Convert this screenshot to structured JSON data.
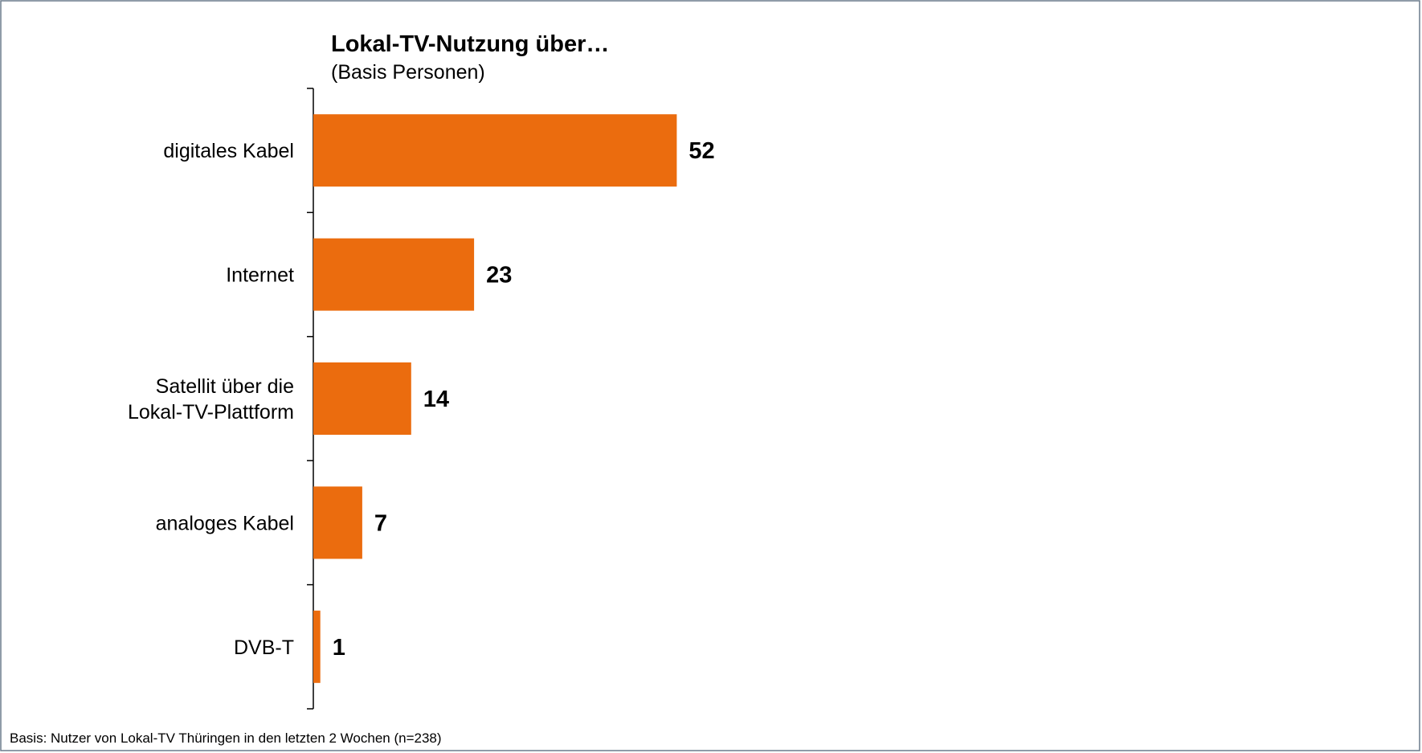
{
  "chart_data": {
    "type": "bar",
    "orientation": "horizontal",
    "title": "Lokal-TV-Nutzung über…",
    "subtitle": "(Basis Personen)",
    "categories": [
      [
        "digitales Kabel"
      ],
      [
        "Internet"
      ],
      [
        "Satellit über die",
        "Lokal-TV-Plattform"
      ],
      [
        "analoges Kabel"
      ],
      [
        "DVB-T"
      ]
    ],
    "values": [
      52,
      23,
      14,
      7,
      1
    ],
    "value_labels": [
      "52",
      "23",
      "14",
      "7",
      "1"
    ],
    "xlim": [
      0,
      100
    ],
    "grid": false,
    "legend": "none",
    "bar_color": "#EB6C0E",
    "border_color": "#6B7B8C"
  },
  "footnote": "Basis: Nutzer von Lokal-TV Thüringen in den letzten 2 Wochen (n=238)"
}
